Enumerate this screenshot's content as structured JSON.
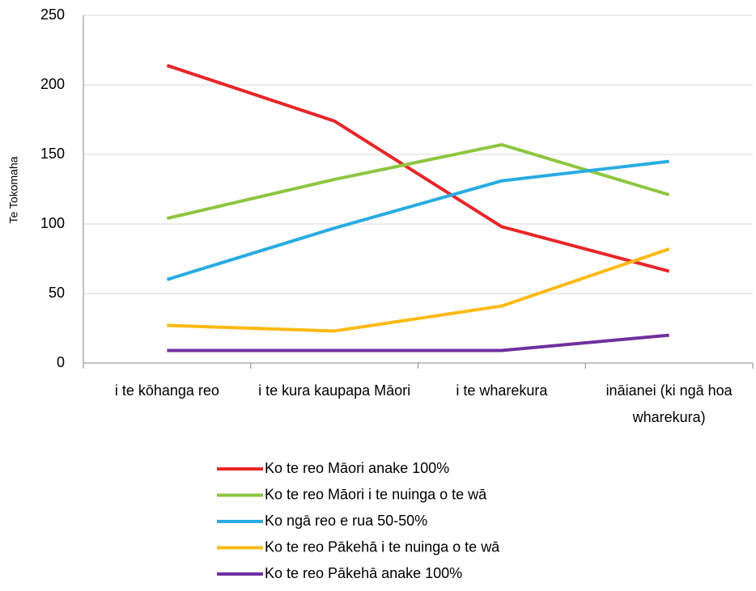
{
  "chart_data": {
    "type": "line",
    "y_label": "Te Tokomaha",
    "categories": [
      "i te kōhanga reo",
      "i te kura kaupapa Māori",
      "i te wharekura",
      "ināianei (ki ngā hoa wharekura)"
    ],
    "series": [
      {
        "name": "Ko te reo Māori anake 100%",
        "color": "#e8262a",
        "values": [
          214,
          174,
          98,
          66
        ]
      },
      {
        "name": "Ko te reo Māori i te nuinga o te wā",
        "color": "#8dc63f",
        "values": [
          104,
          132,
          157,
          121
        ]
      },
      {
        "name": "Ko ngā reo e rua 50-50%",
        "color": "#29abe2",
        "values": [
          60,
          97,
          131,
          145
        ]
      },
      {
        "name": "Ko te reo Pākehā i te nuinga o te wā",
        "color": "#fdb913",
        "values": [
          27,
          23,
          41,
          82
        ]
      },
      {
        "name": "Ko te reo Pākehā anake 100%",
        "color": "#7030a0",
        "values": [
          9,
          9,
          9,
          20
        ]
      }
    ],
    "ylim": [
      0,
      250
    ],
    "yticks": [
      0,
      50,
      100,
      150,
      200,
      250
    ],
    "grid": true,
    "legend": "bottom"
  }
}
